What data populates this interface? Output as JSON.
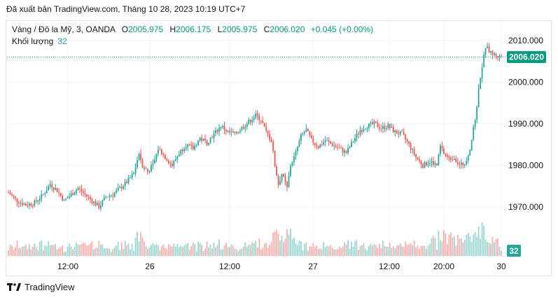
{
  "publication": "Đã xuất bản TradingView.com, Tháng 10 28, 2023 10:19 UTC+7",
  "legend": {
    "symbol": "Vàng / Đô la Mỹ, 3, OANDA",
    "o_label": "O",
    "o_value": "2005.975",
    "h_label": "H",
    "h_value": "2006.175",
    "l_label": "L",
    "l_value": "2005.975",
    "c_label": "C",
    "c_value": "2006.020",
    "change": "+0.045 (+0.00%)"
  },
  "volume_legend": {
    "label": "Khối lượng",
    "value": "32"
  },
  "footer": {
    "brand": "TradingView",
    "logo": "tradingview-logo-icon"
  },
  "colors": {
    "up": "#26a69a",
    "down": "#ef5350",
    "accent": "#089981",
    "grid": "#f0f3fa"
  },
  "chart_data": {
    "type": "candlestick",
    "y_axis": {
      "ticks": [
        "2010.000",
        "2000.000",
        "1990.000",
        "1980.000",
        "1970.000"
      ],
      "range": [
        1961,
        2013
      ],
      "position": "right"
    },
    "x_axis": {
      "ticks": [
        "12:00",
        "26",
        "12:00",
        "27",
        "12:00",
        "20:00",
        "30"
      ]
    },
    "last_price": "2006.020",
    "last_volume": "32",
    "grid": true,
    "price_path": [
      [
        0,
        1973.5
      ],
      [
        5,
        1971.5
      ],
      [
        10,
        1970.5
      ],
      [
        15,
        1971.0
      ],
      [
        20,
        1973.0
      ],
      [
        24,
        1975.5
      ],
      [
        28,
        1974.0
      ],
      [
        32,
        1971.5
      ],
      [
        36,
        1973.0
      ],
      [
        40,
        1974.5
      ],
      [
        44,
        1973.0
      ],
      [
        48,
        1971.5
      ],
      [
        52,
        1970.0
      ],
      [
        56,
        1972.5
      ],
      [
        60,
        1973.0
      ],
      [
        64,
        1974.5
      ],
      [
        68,
        1976.0
      ],
      [
        72,
        1978.0
      ],
      [
        75,
        1983.0
      ],
      [
        77,
        1980.0
      ],
      [
        80,
        1978.5
      ],
      [
        83,
        1980.0
      ],
      [
        86,
        1984.0
      ],
      [
        90,
        1982.0
      ],
      [
        94,
        1980.0
      ],
      [
        98,
        1983.0
      ],
      [
        102,
        1985.0
      ],
      [
        106,
        1984.0
      ],
      [
        110,
        1986.5
      ],
      [
        114,
        1985.5
      ],
      [
        118,
        1987.5
      ],
      [
        122,
        1989.5
      ],
      [
        126,
        1988.0
      ],
      [
        130,
        1987.5
      ],
      [
        134,
        1989.0
      ],
      [
        138,
        1990.5
      ],
      [
        142,
        1992.0
      ],
      [
        145,
        1991.0
      ],
      [
        148,
        1988.0
      ],
      [
        151,
        1986.0
      ],
      [
        153,
        1980.0
      ],
      [
        155,
        1975.5
      ],
      [
        157,
        1978.0
      ],
      [
        160,
        1974.5
      ],
      [
        162,
        1980.0
      ],
      [
        165,
        1983.0
      ],
      [
        168,
        1987.0
      ],
      [
        171,
        1988.5
      ],
      [
        174,
        1986.0
      ],
      [
        178,
        1984.5
      ],
      [
        182,
        1986.0
      ],
      [
        186,
        1985.0
      ],
      [
        190,
        1984.0
      ],
      [
        194,
        1983.0
      ],
      [
        198,
        1986.0
      ],
      [
        202,
        1988.5
      ],
      [
        206,
        1989.5
      ],
      [
        210,
        1990.0
      ],
      [
        214,
        1989.0
      ],
      [
        218,
        1989.5
      ],
      [
        222,
        1988.0
      ],
      [
        226,
        1987.5
      ],
      [
        230,
        1985.0
      ],
      [
        234,
        1982.0
      ],
      [
        238,
        1980.0
      ],
      [
        242,
        1981.0
      ],
      [
        246,
        1980.0
      ],
      [
        248,
        1984.5
      ],
      [
        250,
        1983.0
      ],
      [
        253,
        1981.5
      ],
      [
        256,
        1982.0
      ],
      [
        259,
        1980.0
      ],
      [
        262,
        1980.5
      ],
      [
        265,
        1984.0
      ],
      [
        268,
        1991.0
      ],
      [
        271,
        2001.5
      ],
      [
        274,
        2008.5
      ],
      [
        277,
        2007.0
      ],
      [
        280,
        2006.5
      ],
      [
        283,
        2006.0
      ]
    ]
  }
}
